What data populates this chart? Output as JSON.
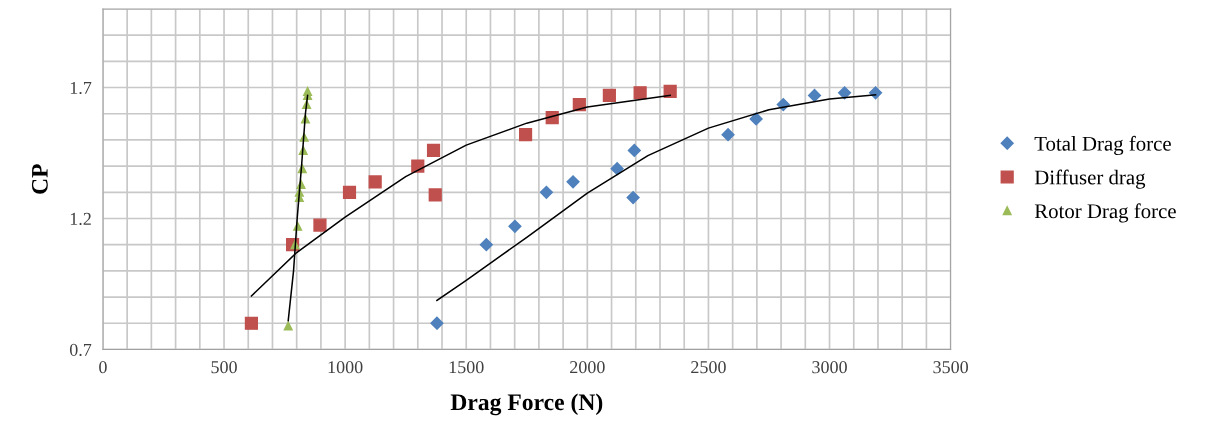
{
  "chart_data": {
    "type": "scatter",
    "xlabel": "Drag Force (N)",
    "ylabel": "CP",
    "xlim": [
      0,
      3500
    ],
    "xticks": [
      0,
      {
        "value": 100,
        "label": null
      },
      {
        "value": 200,
        "label": null
      },
      {
        "value": 300,
        "label": null
      },
      {
        "value": 400,
        "label": null
      },
      500,
      {
        "value": 600,
        "label": null
      },
      {
        "value": 700,
        "label": null
      },
      {
        "value": 800,
        "label": null
      },
      {
        "value": 900,
        "label": null
      },
      1000,
      {
        "value": 1100,
        "label": null
      },
      {
        "value": 1200,
        "label": null
      },
      {
        "value": 1300,
        "label": null
      },
      {
        "value": 1400,
        "label": null
      },
      1500,
      {
        "value": 1600,
        "label": null
      },
      {
        "value": 1700,
        "label": null
      },
      {
        "value": 1800,
        "label": null
      },
      {
        "value": 1900,
        "label": null
      },
      2000,
      {
        "value": 2100,
        "label": null
      },
      {
        "value": 2200,
        "label": null
      },
      {
        "value": 2300,
        "label": null
      },
      {
        "value": 2400,
        "label": null
      },
      2500,
      {
        "value": 2600,
        "label": null
      },
      {
        "value": 2700,
        "label": null
      },
      {
        "value": 2800,
        "label": null
      },
      {
        "value": 2900,
        "label": null
      },
      3000,
      {
        "value": 3100,
        "label": null
      },
      {
        "value": 3200,
        "label": null
      },
      {
        "value": 3300,
        "label": null
      },
      {
        "value": 3400,
        "label": null
      },
      3500
    ],
    "ylim": [
      0.7,
      2.0
    ],
    "yticks": [
      0.7,
      {
        "value": 0.8,
        "label": null
      },
      {
        "value": 0.9,
        "label": null
      },
      {
        "value": 1.0,
        "label": null
      },
      {
        "value": 1.1,
        "label": null
      },
      1.2,
      {
        "value": 1.3,
        "label": null
      },
      {
        "value": 1.4,
        "label": null
      },
      {
        "value": 1.5,
        "label": null
      },
      {
        "value": 1.6,
        "label": null
      },
      1.7,
      {
        "value": 1.8,
        "label": null
      },
      {
        "value": 1.9,
        "label": null
      },
      {
        "value": 2.0,
        "label": null
      }
    ],
    "grid": true,
    "legend": "right",
    "series": [
      {
        "name": "Total Drag force",
        "color": "#4f81bd",
        "marker": "diamond",
        "x": [
          1379,
          1583,
          1701,
          1831,
          1941,
          2123,
          2194,
          2189,
          2581,
          2697,
          2809,
          2938,
          3062,
          3190
        ],
        "values": [
          0.8,
          1.1,
          1.17,
          1.3,
          1.34,
          1.39,
          1.46,
          1.28,
          1.52,
          1.58,
          1.635,
          1.67,
          1.68,
          1.68
        ]
      },
      {
        "name": "Diffuser drag",
        "color": "#c0504d",
        "marker": "square",
        "x": [
          613,
          783,
          896,
          1018,
          1124,
          1300,
          1365,
          1372,
          1745,
          1855,
          1967,
          2091,
          2218,
          2342
        ],
        "values": [
          0.8,
          1.1,
          1.175,
          1.3,
          1.34,
          1.4,
          1.46,
          1.29,
          1.52,
          1.585,
          1.635,
          1.67,
          1.68,
          1.685
        ]
      },
      {
        "name": "Rotor Drag force",
        "color": "#9bbb59",
        "marker": "triangle",
        "x": [
          765,
          793,
          804,
          811,
          811,
          818,
          823,
          827,
          831,
          836,
          841,
          845,
          845
        ],
        "values": [
          0.79,
          1.1,
          1.17,
          1.28,
          1.3,
          1.33,
          1.39,
          1.46,
          1.51,
          1.58,
          1.635,
          1.67,
          1.685
        ]
      },
      {
        "type": "line",
        "color": "#000000",
        "marker": "none",
        "x": [
          1379,
          1500,
          1750,
          2000,
          2250,
          2500,
          2750,
          3000,
          3190
        ],
        "values": [
          0.887,
          0.964,
          1.128,
          1.297,
          1.44,
          1.545,
          1.615,
          1.656,
          1.672
        ]
      },
      {
        "type": "line",
        "color": "#000000",
        "marker": "none",
        "x": [
          613,
          800,
          1000,
          1250,
          1500,
          1750,
          2000,
          2342
        ],
        "values": [
          0.904,
          1.07,
          1.205,
          1.36,
          1.48,
          1.564,
          1.626,
          1.67
        ]
      },
      {
        "type": "line",
        "color": "#000000",
        "marker": "none",
        "x": [
          765,
          787,
          802,
          820,
          836,
          845
        ],
        "values": [
          0.81,
          1.0,
          1.2,
          1.4,
          1.6,
          1.67
        ]
      }
    ]
  }
}
